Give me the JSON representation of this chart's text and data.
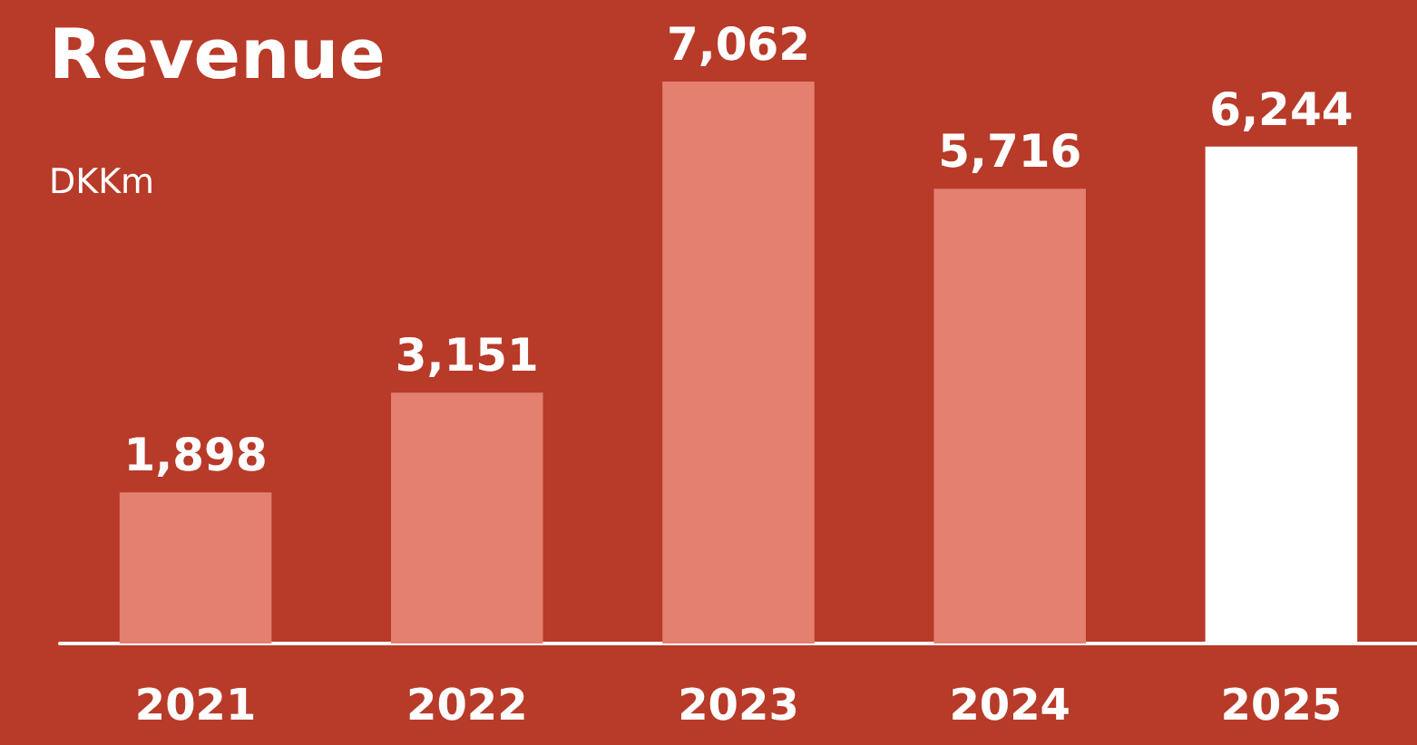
{
  "chart_data": {
    "type": "bar",
    "title": "Revenue",
    "subtitle": "DKKm",
    "categories": [
      "2021",
      "2022",
      "2023",
      "2024",
      "2025"
    ],
    "values": [
      1898,
      3151,
      7062,
      5716,
      6244
    ],
    "colors": [
      "#e38070",
      "#e38070",
      "#e38070",
      "#e38070",
      "#ffffff"
    ],
    "value_labels": [
      "1,898",
      "3,151",
      "7,062",
      "5,716",
      "6,244"
    ]
  }
}
